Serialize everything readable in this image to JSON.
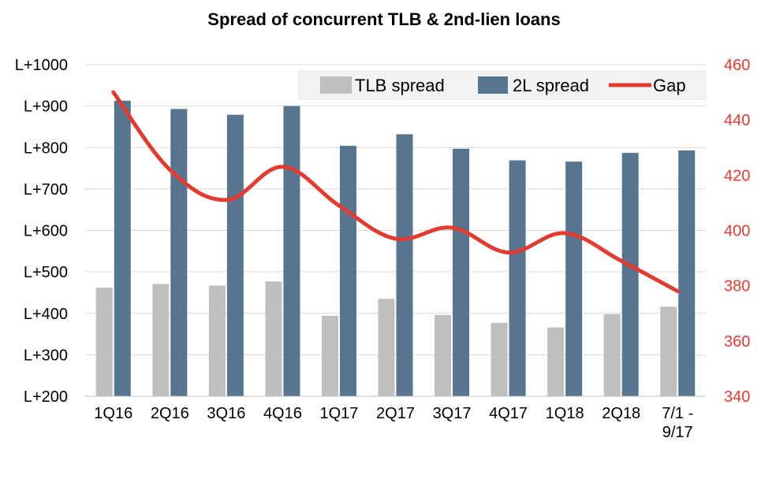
{
  "chart_data": {
    "type": "bar",
    "title": "Spread of concurrent TLB & 2nd-lien loans",
    "categories": [
      "1Q16",
      "2Q16",
      "3Q16",
      "4Q16",
      "1Q17",
      "2Q17",
      "3Q17",
      "4Q17",
      "1Q18",
      "2Q18",
      "7/1 - 9/17"
    ],
    "category_lines": [
      [
        "1Q16"
      ],
      [
        "2Q16"
      ],
      [
        "3Q16"
      ],
      [
        "4Q16"
      ],
      [
        "1Q17"
      ],
      [
        "2Q17"
      ],
      [
        "3Q17"
      ],
      [
        "4Q17"
      ],
      [
        "1Q18"
      ],
      [
        "2Q18"
      ],
      [
        "7/1 -",
        "9/17"
      ]
    ],
    "series": [
      {
        "name": "TLB spread",
        "type": "bar",
        "axis": "left",
        "color": "#bfbfbf",
        "values": [
          462,
          471,
          467,
          477,
          394,
          435,
          396,
          377,
          366,
          398,
          416
        ]
      },
      {
        "name": "2L spread",
        "type": "bar",
        "axis": "left",
        "color": "#57758f",
        "values": [
          913,
          893,
          879,
          900,
          804,
          832,
          797,
          769,
          766,
          787,
          793
        ]
      },
      {
        "name": "Gap",
        "type": "line",
        "axis": "right",
        "color": "#e03c31",
        "values": [
          450,
          422,
          411,
          423,
          409,
          397,
          401,
          392,
          399,
          389,
          378
        ]
      }
    ],
    "y_left": {
      "min": 200,
      "max": 1000,
      "step": 100,
      "tick_labels": [
        "L+200",
        "L+300",
        "L+400",
        "L+500",
        "L+600",
        "L+700",
        "L+800",
        "L+900",
        "L+1000"
      ]
    },
    "y_right": {
      "min": 340,
      "max": 460,
      "step": 20,
      "tick_labels": [
        "340",
        "360",
        "380",
        "400",
        "420",
        "440",
        "460"
      ],
      "color": "#e03c31"
    },
    "grid": true,
    "legend_position": "top-right"
  }
}
